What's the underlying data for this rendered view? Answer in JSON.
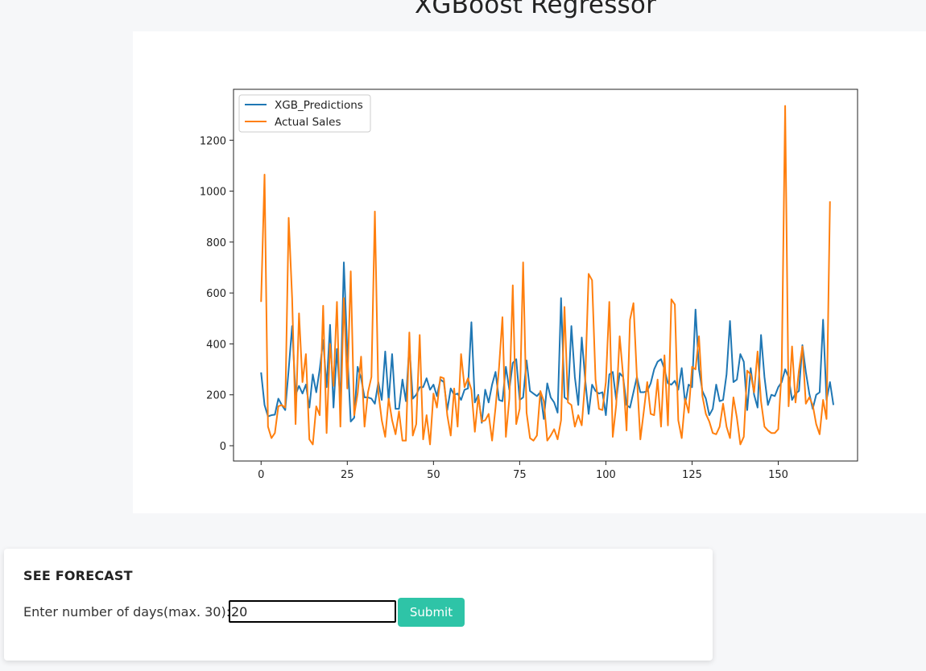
{
  "page": {
    "title": "XGBoost Regressor"
  },
  "forecast": {
    "heading": "SEE FORECAST",
    "label": "Enter number of days(max. 30):",
    "input_value": "20",
    "submit_label": "Submit"
  },
  "colors": {
    "predictions": "#1f77b4",
    "actual": "#ff7f0e",
    "submit": "#2ec4a7"
  },
  "chart_data": {
    "type": "line",
    "title": "",
    "xlabel": "",
    "ylabel": "",
    "xlim": [
      -8,
      173
    ],
    "ylim": [
      -60,
      1400
    ],
    "xticks": [
      0,
      25,
      50,
      75,
      100,
      125,
      150
    ],
    "yticks": [
      0,
      200,
      400,
      600,
      800,
      1000,
      1200
    ],
    "legend": "top-left",
    "grid": false,
    "series": [
      {
        "name": "XGB_Predictions",
        "color": "#1f77b4",
        "values": [
          288,
          160,
          115,
          120,
          122,
          185,
          160,
          140,
          300,
          470,
          200,
          235,
          205,
          240,
          150,
          280,
          210,
          300,
          415,
          230,
          475,
          150,
          380,
          170,
          720,
          370,
          95,
          110,
          310,
          265,
          190,
          190,
          185,
          165,
          250,
          180,
          370,
          175,
          360,
          145,
          145,
          260,
          175,
          395,
          185,
          200,
          230,
          230,
          265,
          220,
          240,
          195,
          260,
          250,
          140,
          225,
          200,
          205,
          180,
          220,
          225,
          485,
          170,
          200,
          90,
          220,
          170,
          240,
          290,
          180,
          175,
          310,
          220,
          325,
          340,
          180,
          190,
          335,
          215,
          205,
          195,
          210,
          105,
          245,
          190,
          170,
          130,
          580,
          190,
          180,
          470,
          270,
          160,
          425,
          260,
          125,
          240,
          215,
          205,
          210,
          120,
          280,
          290,
          180,
          285,
          270,
          160,
          150,
          210,
          270,
          210,
          210,
          215,
          245,
          300,
          330,
          340,
          300,
          245,
          240,
          255,
          220,
          305,
          165,
          240,
          230,
          535,
          300,
          215,
          185,
          120,
          145,
          240,
          175,
          180,
          280,
          490,
          250,
          260,
          360,
          330,
          140,
          305,
          200,
          150,
          435,
          270,
          160,
          200,
          195,
          230,
          250,
          300,
          270,
          180,
          205,
          215,
          395,
          290,
          205,
          145,
          200,
          210,
          495,
          180,
          250,
          160
        ]
      },
      {
        "name": "Actual Sales",
        "color": "#ff7f0e",
        "values": [
          565,
          1065,
          75,
          30,
          50,
          155,
          160,
          150,
          895,
          580,
          85,
          520,
          250,
          360,
          25,
          5,
          155,
          120,
          550,
          50,
          400,
          235,
          565,
          75,
          580,
          225,
          685,
          120,
          205,
          350,
          75,
          210,
          270,
          920,
          210,
          100,
          35,
          185,
          100,
          45,
          135,
          20,
          20,
          445,
          40,
          85,
          435,
          25,
          120,
          5,
          205,
          150,
          270,
          265,
          120,
          40,
          225,
          75,
          360,
          230,
          265,
          220,
          55,
          195,
          95,
          100,
          125,
          20,
          150,
          305,
          505,
          35,
          185,
          630,
          85,
          145,
          720,
          130,
          30,
          20,
          40,
          215,
          175,
          20,
          40,
          65,
          25,
          100,
          545,
          170,
          160,
          75,
          120,
          80,
          255,
          675,
          650,
          260,
          145,
          140,
          250,
          565,
          35,
          160,
          430,
          275,
          60,
          495,
          560,
          270,
          25,
          135,
          250,
          125,
          120,
          260,
          75,
          355,
          80,
          575,
          555,
          100,
          30,
          185,
          130,
          310,
          300,
          430,
          195,
          125,
          95,
          50,
          45,
          75,
          165,
          75,
          30,
          190,
          110,
          5,
          35,
          295,
          280,
          210,
          370,
          175,
          75,
          60,
          50,
          50,
          65,
          300,
          1335,
          155,
          390,
          170,
          295,
          390,
          165,
          190,
          160,
          85,
          45,
          180,
          105,
          960
        ]
      }
    ]
  }
}
